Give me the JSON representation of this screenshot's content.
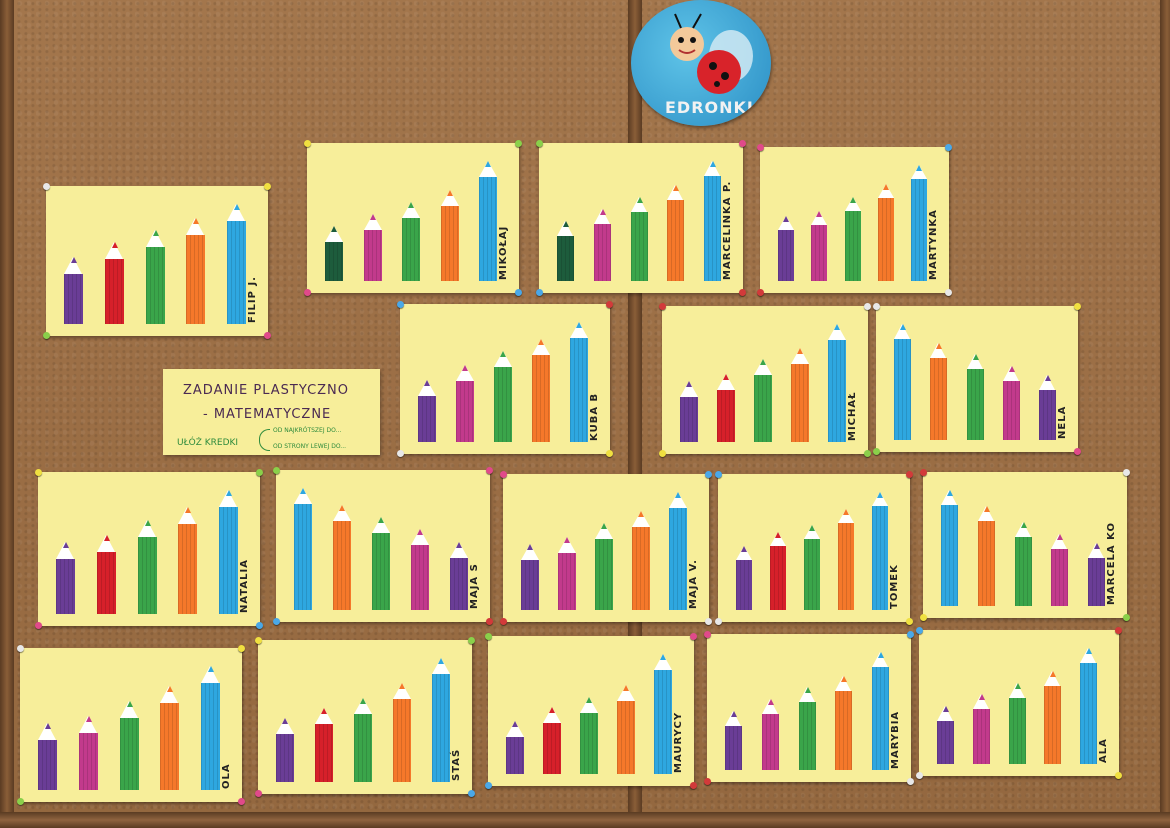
{
  "logo": {
    "text": "EDRONKI"
  },
  "task_card": {
    "line1": "ZADANIE PLASTYCZNO",
    "line2": "- MATEMATYCZNE",
    "line3": "UŁÓŻ  KREDKI",
    "line4": "OD NAJKRÓTSZEJ DO...",
    "line5": "OD STRONY LEWEJ DO..."
  },
  "colors": {
    "purple": "#6a3d96",
    "red": "#d6202a",
    "green": "#3aa54a",
    "orange": "#f5782a",
    "blue": "#2ea7e0",
    "pink": "#c23a8c",
    "darkgreen": "#1d5c3c",
    "paper": "#f7ee9a"
  },
  "cards": [
    {
      "name": "FILIP J.",
      "pencils": [
        {
          "color": "purple",
          "length": 0.56
        },
        {
          "color": "red",
          "length": 0.68
        },
        {
          "color": "green",
          "length": 0.78
        },
        {
          "color": "orange",
          "length": 0.88
        },
        {
          "color": "blue",
          "length": 1.0
        }
      ]
    },
    {
      "name": "MIKOŁAJ",
      "pencils": [
        {
          "color": "darkgreen",
          "length": 0.46
        },
        {
          "color": "pink",
          "length": 0.56
        },
        {
          "color": "green",
          "length": 0.66
        },
        {
          "color": "orange",
          "length": 0.76
        },
        {
          "color": "blue",
          "length": 1.0
        }
      ]
    },
    {
      "name": "MARCELINKA P.",
      "pencils": [
        {
          "color": "darkgreen",
          "length": 0.5
        },
        {
          "color": "pink",
          "length": 0.6
        },
        {
          "color": "green",
          "length": 0.7
        },
        {
          "color": "orange",
          "length": 0.8
        },
        {
          "color": "blue",
          "length": 1.0
        }
      ]
    },
    {
      "name": "MARTYNKA",
      "pencils": [
        {
          "color": "purple",
          "length": 0.56
        },
        {
          "color": "pink",
          "length": 0.6
        },
        {
          "color": "green",
          "length": 0.72
        },
        {
          "color": "orange",
          "length": 0.84
        },
        {
          "color": "blue",
          "length": 1.0
        }
      ]
    },
    {
      "name": "KUBA B",
      "pencils": [
        {
          "color": "purple",
          "length": 0.52
        },
        {
          "color": "pink",
          "length": 0.64
        },
        {
          "color": "green",
          "length": 0.76
        },
        {
          "color": "orange",
          "length": 0.86
        },
        {
          "color": "blue",
          "length": 1.0
        }
      ]
    },
    {
      "name": "MICHAŁ",
      "pencils": [
        {
          "color": "purple",
          "length": 0.52
        },
        {
          "color": "red",
          "length": 0.58
        },
        {
          "color": "green",
          "length": 0.7
        },
        {
          "color": "orange",
          "length": 0.8
        },
        {
          "color": "blue",
          "length": 1.0
        }
      ]
    },
    {
      "name": "NELA",
      "pencils": [
        {
          "color": "blue",
          "length": 1.0
        },
        {
          "color": "orange",
          "length": 0.84
        },
        {
          "color": "green",
          "length": 0.74
        },
        {
          "color": "pink",
          "length": 0.64
        },
        {
          "color": "purple",
          "length": 0.56
        }
      ]
    },
    {
      "name": "NATALIA",
      "pencils": [
        {
          "color": "purple",
          "length": 0.58
        },
        {
          "color": "red",
          "length": 0.64
        },
        {
          "color": "green",
          "length": 0.76
        },
        {
          "color": "orange",
          "length": 0.86
        },
        {
          "color": "blue",
          "length": 1.0
        }
      ]
    },
    {
      "name": "MAJA S",
      "pencils": [
        {
          "color": "blue",
          "length": 1.0
        },
        {
          "color": "orange",
          "length": 0.86
        },
        {
          "color": "green",
          "length": 0.76
        },
        {
          "color": "pink",
          "length": 0.66
        },
        {
          "color": "purple",
          "length": 0.56
        }
      ]
    },
    {
      "name": "MAJA V.",
      "pencils": [
        {
          "color": "purple",
          "length": 0.56
        },
        {
          "color": "pink",
          "length": 0.62
        },
        {
          "color": "green",
          "length": 0.74
        },
        {
          "color": "orange",
          "length": 0.84
        },
        {
          "color": "blue",
          "length": 1.0
        }
      ]
    },
    {
      "name": "TOMEK",
      "pencils": [
        {
          "color": "purple",
          "length": 0.54
        },
        {
          "color": "red",
          "length": 0.66
        },
        {
          "color": "green",
          "length": 0.72
        },
        {
          "color": "orange",
          "length": 0.86
        },
        {
          "color": "blue",
          "length": 1.0
        }
      ]
    },
    {
      "name": "MARCELA KO",
      "pencils": [
        {
          "color": "blue",
          "length": 1.0
        },
        {
          "color": "orange",
          "length": 0.86
        },
        {
          "color": "green",
          "length": 0.72
        },
        {
          "color": "pink",
          "length": 0.62
        },
        {
          "color": "purple",
          "length": 0.54
        }
      ]
    },
    {
      "name": "OLA",
      "pencils": [
        {
          "color": "purple",
          "length": 0.54
        },
        {
          "color": "pink",
          "length": 0.6
        },
        {
          "color": "green",
          "length": 0.72
        },
        {
          "color": "orange",
          "length": 0.84
        },
        {
          "color": "blue",
          "length": 1.0
        }
      ]
    },
    {
      "name": "STAŚ",
      "pencils": [
        {
          "color": "purple",
          "length": 0.52
        },
        {
          "color": "red",
          "length": 0.6
        },
        {
          "color": "green",
          "length": 0.68
        },
        {
          "color": "orange",
          "length": 0.8
        },
        {
          "color": "blue",
          "length": 1.0
        }
      ]
    },
    {
      "name": "MAURYCY",
      "pencils": [
        {
          "color": "purple",
          "length": 0.44
        },
        {
          "color": "red",
          "length": 0.56
        },
        {
          "color": "green",
          "length": 0.64
        },
        {
          "color": "orange",
          "length": 0.74
        },
        {
          "color": "blue",
          "length": 1.0
        }
      ]
    },
    {
      "name": "MARYBIA",
      "pencils": [
        {
          "color": "purple",
          "length": 0.5
        },
        {
          "color": "pink",
          "length": 0.6
        },
        {
          "color": "green",
          "length": 0.7
        },
        {
          "color": "orange",
          "length": 0.8
        },
        {
          "color": "blue",
          "length": 1.0
        }
      ]
    },
    {
      "name": "ALA",
      "pencils": [
        {
          "color": "purple",
          "length": 0.5
        },
        {
          "color": "pink",
          "length": 0.6
        },
        {
          "color": "green",
          "length": 0.7
        },
        {
          "color": "orange",
          "length": 0.8
        },
        {
          "color": "blue",
          "length": 1.0
        }
      ]
    }
  ]
}
